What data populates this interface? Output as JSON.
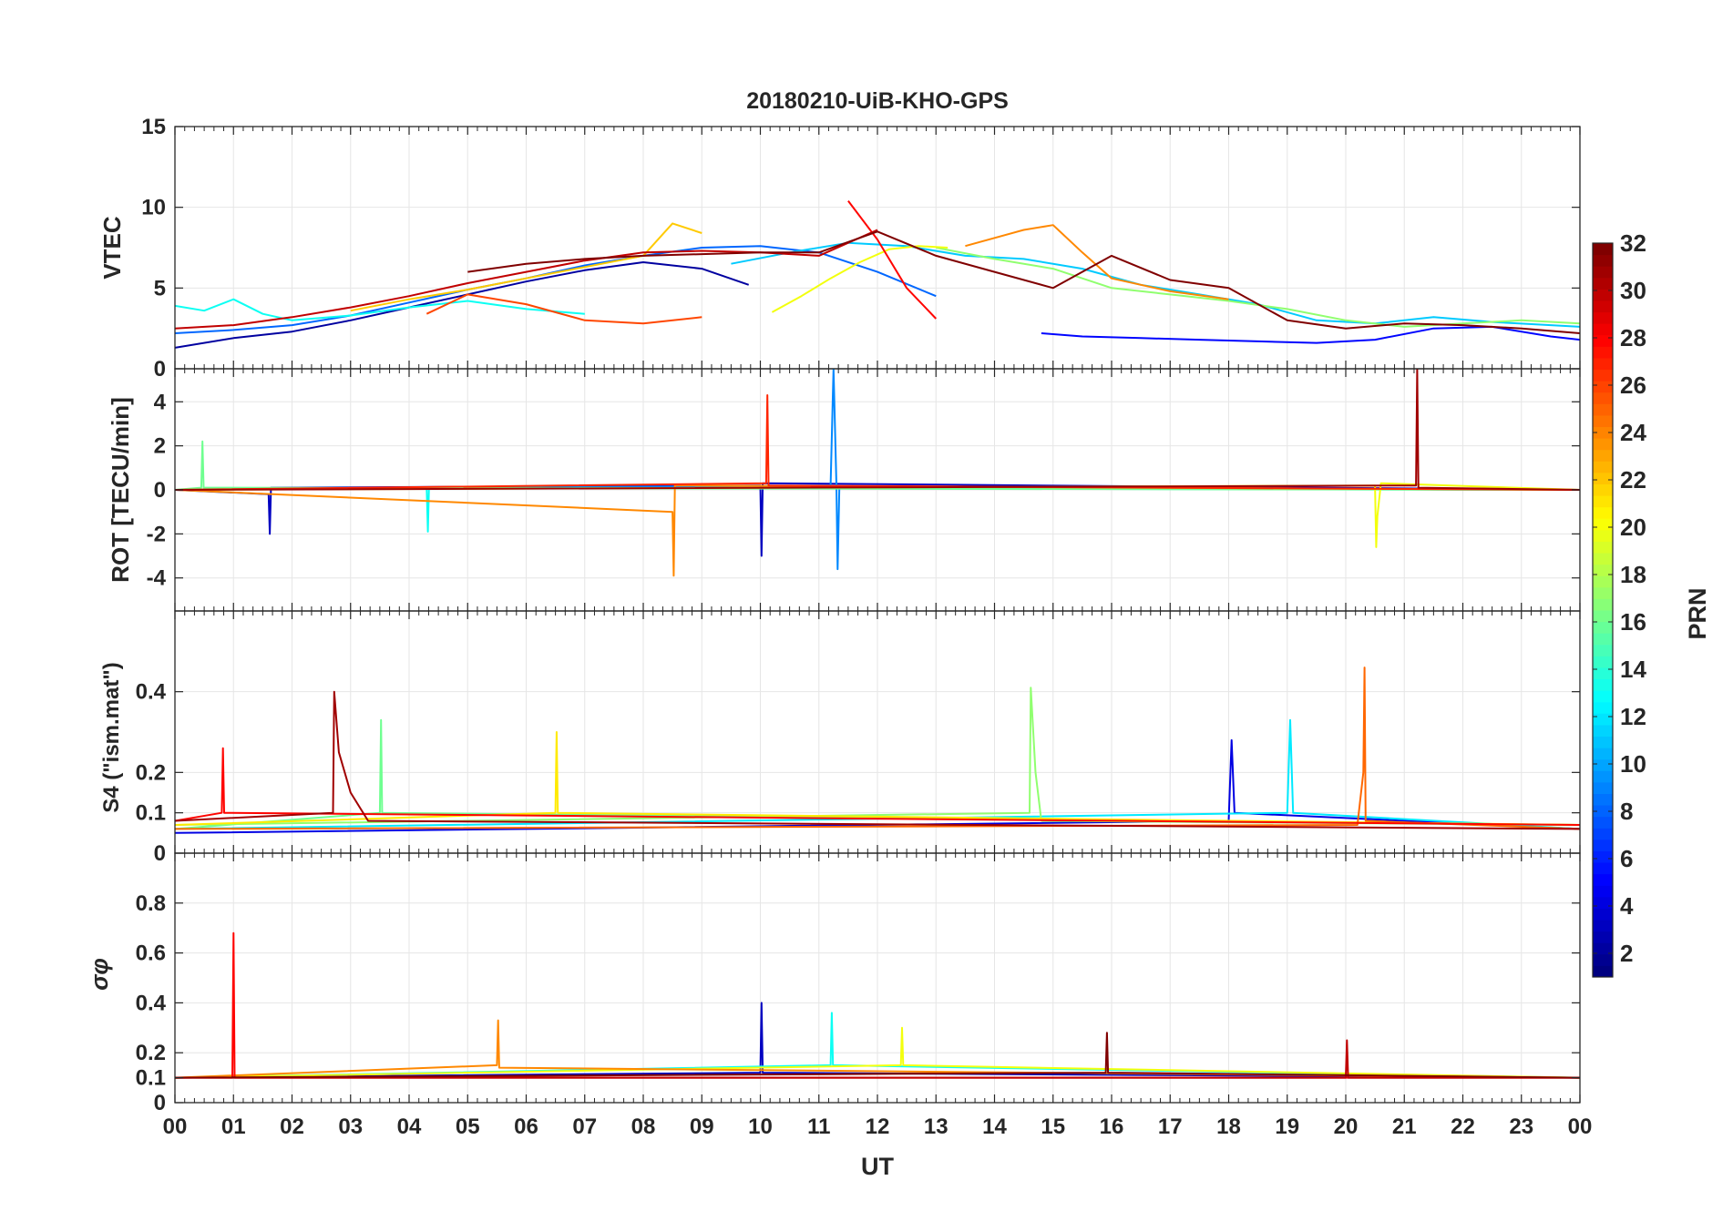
{
  "chart_data": {
    "type": "line",
    "title": "20180210-UiB-KHO-GPS",
    "xlabel": "UT",
    "x_ticks": [
      "00",
      "01",
      "02",
      "03",
      "04",
      "05",
      "06",
      "07",
      "08",
      "09",
      "10",
      "11",
      "12",
      "13",
      "14",
      "15",
      "16",
      "17",
      "18",
      "19",
      "20",
      "21",
      "22",
      "23",
      "00"
    ],
    "xlim": [
      0,
      24
    ],
    "grid": true,
    "panels": [
      {
        "id": "vtec",
        "ylabel": "VTEC",
        "ylim": [
          0,
          15
        ],
        "y_ticks": [
          0,
          5,
          10,
          15
        ],
        "series": [
          {
            "prn": 2,
            "x": [
              0,
              1,
              2,
              3,
              4,
              5,
              6,
              7,
              8,
              9,
              9.8
            ],
            "y": [
              1.3,
              1.9,
              2.3,
              3.0,
              3.8,
              4.6,
              5.4,
              6.1,
              6.6,
              6.2,
              5.2
            ]
          },
          {
            "prn": 5,
            "x": [
              14.8,
              15.5,
              16.5,
              17.5,
              18.5,
              19.5,
              20.5,
              21.5,
              22.5,
              23.5,
              24
            ],
            "y": [
              2.2,
              2.0,
              1.9,
              1.8,
              1.7,
              1.6,
              1.8,
              2.5,
              2.6,
              2.0,
              1.8
            ]
          },
          {
            "prn": 8,
            "x": [
              0,
              1,
              2,
              3,
              4,
              5,
              6,
              7,
              8,
              9,
              10,
              11,
              12,
              13
            ],
            "y": [
              2.2,
              2.4,
              2.7,
              3.3,
              4.1,
              4.9,
              5.6,
              6.4,
              7.0,
              7.5,
              7.6,
              7.2,
              6.0,
              4.5
            ]
          },
          {
            "prn": 11,
            "x": [
              9.5,
              10.5,
              11.5,
              12.5,
              13.5,
              14.5,
              15.5,
              16.5,
              17.5,
              18.5,
              19.5,
              20.5,
              21.5,
              22.5,
              23.5,
              24
            ],
            "y": [
              6.5,
              7.2,
              7.8,
              7.6,
              7.0,
              6.8,
              6.2,
              5.2,
              4.6,
              4.0,
              3.0,
              2.8,
              3.2,
              2.9,
              2.7,
              2.6
            ]
          },
          {
            "prn": 13,
            "x": [
              0,
              0.5,
              1,
              1.5,
              2,
              3,
              4,
              5,
              6,
              7
            ],
            "y": [
              3.9,
              3.6,
              4.3,
              3.4,
              3.0,
              3.3,
              3.8,
              4.2,
              3.7,
              3.4
            ]
          },
          {
            "prn": 17,
            "x": [
              13,
              14,
              15,
              16,
              17,
              18,
              19,
              20,
              21,
              22,
              23,
              24
            ],
            "y": [
              7.5,
              6.8,
              6.2,
              5.0,
              4.6,
              4.2,
              3.7,
              3.0,
              2.6,
              2.8,
              3.0,
              2.8
            ]
          },
          {
            "prn": 20,
            "x": [
              10.2,
              10.7,
              11.2,
              11.7,
              12.2,
              12.7,
              13.2
            ],
            "y": [
              3.5,
              4.5,
              5.6,
              6.6,
              7.4,
              7.6,
              7.5
            ]
          },
          {
            "prn": 22,
            "x": [
              3,
              4,
              5,
              6,
              7,
              8,
              8.5,
              9
            ],
            "y": [
              3.6,
              4.3,
              4.9,
              5.6,
              6.3,
              7.0,
              9.0,
              8.4
            ]
          },
          {
            "prn": 24,
            "x": [
              13.5,
              14.5,
              15,
              15.5,
              16,
              17,
              18
            ],
            "y": [
              7.6,
              8.6,
              8.9,
              7.2,
              5.6,
              4.8,
              4.3
            ]
          },
          {
            "prn": 26,
            "x": [
              4.3,
              5,
              6,
              7,
              8,
              9
            ],
            "y": [
              3.4,
              4.6,
              4.0,
              3.0,
              2.8,
              3.2
            ]
          },
          {
            "prn": 28,
            "x": [
              11.5,
              12,
              12.5,
              13
            ],
            "y": [
              10.4,
              8.0,
              5.0,
              3.1
            ]
          },
          {
            "prn": 30,
            "x": [
              0,
              1,
              2,
              3,
              4,
              5,
              6,
              7,
              8,
              9,
              10,
              11,
              12
            ],
            "y": [
              2.5,
              2.7,
              3.2,
              3.8,
              4.5,
              5.3,
              6.0,
              6.7,
              7.2,
              7.3,
              7.2,
              7.0,
              8.6
            ]
          },
          {
            "prn": 32,
            "x": [
              5,
              6,
              7,
              8,
              9,
              10,
              11,
              12,
              13,
              14,
              15,
              16,
              17,
              18,
              19,
              20,
              21,
              22,
              23,
              24
            ],
            "y": [
              6.0,
              6.5,
              6.8,
              7.0,
              7.1,
              7.2,
              7.2,
              8.5,
              7.0,
              6.0,
              5.0,
              7.0,
              5.5,
              5.0,
              3.0,
              2.5,
              2.8,
              2.7,
              2.5,
              2.2
            ]
          }
        ]
      },
      {
        "id": "rot",
        "ylabel": "ROT [TECU/min]",
        "ylim": [
          -5.5,
          5.5
        ],
        "y_ticks": [
          -4,
          -2,
          0,
          2,
          4
        ],
        "series": [
          {
            "prn": 3,
            "x": [
              0,
              1.6,
              1.62,
              1.64,
              10,
              10.02,
              10.04,
              24
            ],
            "y": [
              0,
              -0.2,
              -2.0,
              0.1,
              0.2,
              -3.0,
              0.3,
              0
            ]
          },
          {
            "prn": 9,
            "x": [
              0,
              11.2,
              11.25,
              11.3,
              11.32,
              11.35,
              24
            ],
            "y": [
              0,
              0.2,
              5.5,
              0.2,
              -3.6,
              0.1,
              0
            ]
          },
          {
            "prn": 13,
            "x": [
              0,
              4.3,
              4.32,
              4.34,
              24
            ],
            "y": [
              0,
              0.1,
              -1.9,
              0.1,
              0
            ]
          },
          {
            "prn": 16,
            "x": [
              0,
              0.45,
              0.47,
              0.49,
              24
            ],
            "y": [
              0,
              0.1,
              2.2,
              0.1,
              0
            ]
          },
          {
            "prn": 20,
            "x": [
              0,
              20.5,
              20.52,
              20.54,
              20.6,
              24
            ],
            "y": [
              0,
              0.2,
              -2.6,
              -1.2,
              0.3,
              0
            ]
          },
          {
            "prn": 24,
            "x": [
              0,
              8.5,
              8.52,
              8.54,
              24
            ],
            "y": [
              0,
              -1.0,
              -3.9,
              0.2,
              0
            ]
          },
          {
            "prn": 27,
            "x": [
              0,
              10.1,
              10.12,
              10.14,
              24
            ],
            "y": [
              0,
              0.3,
              4.3,
              0.2,
              0
            ]
          },
          {
            "prn": 31,
            "x": [
              0,
              21.2,
              21.22,
              21.24,
              24
            ],
            "y": [
              0,
              0.2,
              5.5,
              0.1,
              0
            ]
          }
        ]
      },
      {
        "id": "s4",
        "ylabel": "S4 (\"ism.mat\")",
        "ylim": [
          0,
          0.6
        ],
        "y_ticks": [
          0,
          0.1,
          0.2,
          0.4
        ],
        "series": [
          {
            "prn": 4,
            "x": [
              0,
              18.0,
              18.05,
              18.1,
              24
            ],
            "y": [
              0.05,
              0.08,
              0.28,
              0.1,
              0.06
            ]
          },
          {
            "prn": 12,
            "x": [
              0,
              19.0,
              19.05,
              19.1,
              24
            ],
            "y": [
              0.06,
              0.1,
              0.33,
              0.1,
              0.06
            ]
          },
          {
            "prn": 16,
            "x": [
              0,
              3.5,
              3.52,
              3.54,
              24
            ],
            "y": [
              0.06,
              0.1,
              0.33,
              0.1,
              0.07
            ]
          },
          {
            "prn": 17,
            "x": [
              0,
              14.6,
              14.62,
              14.7,
              14.8,
              24
            ],
            "y": [
              0.07,
              0.1,
              0.41,
              0.2,
              0.08,
              0.07
            ]
          },
          {
            "prn": 21,
            "x": [
              0,
              6.5,
              6.52,
              6.54,
              24
            ],
            "y": [
              0.07,
              0.1,
              0.3,
              0.1,
              0.07
            ]
          },
          {
            "prn": 25,
            "x": [
              0,
              20.2,
              20.3,
              20.32,
              20.34,
              24
            ],
            "y": [
              0.06,
              0.07,
              0.2,
              0.46,
              0.08,
              0.06
            ]
          },
          {
            "prn": 28,
            "x": [
              0,
              0.8,
              0.82,
              0.84,
              24
            ],
            "y": [
              0.08,
              0.1,
              0.26,
              0.1,
              0.07
            ]
          },
          {
            "prn": 31,
            "x": [
              0,
              2.7,
              2.72,
              2.8,
              3.0,
              3.3,
              24
            ],
            "y": [
              0.08,
              0.1,
              0.4,
              0.25,
              0.15,
              0.08,
              0.06
            ]
          }
        ]
      },
      {
        "id": "sigma",
        "ylabel": "σφ",
        "ylim": [
          0,
          1.0
        ],
        "y_ticks": [
          0,
          0.1,
          0.2,
          0.4,
          0.6,
          0.8
        ],
        "series": [
          {
            "prn": 3,
            "x": [
              0,
              10.0,
              10.02,
              10.04,
              24
            ],
            "y": [
              0.1,
              0.12,
              0.4,
              0.12,
              0.1
            ]
          },
          {
            "prn": 13,
            "x": [
              0,
              11.2,
              11.22,
              11.24,
              24
            ],
            "y": [
              0.1,
              0.15,
              0.36,
              0.15,
              0.1
            ]
          },
          {
            "prn": 20,
            "x": [
              0,
              12.4,
              12.42,
              12.44,
              24
            ],
            "y": [
              0.1,
              0.15,
              0.3,
              0.15,
              0.1
            ]
          },
          {
            "prn": 24,
            "x": [
              0,
              5.5,
              5.52,
              5.54,
              24
            ],
            "y": [
              0.1,
              0.15,
              0.33,
              0.14,
              0.1
            ]
          },
          {
            "prn": 28,
            "x": [
              0,
              0.98,
              1.0,
              1.02,
              24
            ],
            "y": [
              0.1,
              0.1,
              0.68,
              0.1,
              0.1
            ]
          },
          {
            "prn": 30,
            "x": [
              0,
              20.0,
              20.02,
              20.04,
              24
            ],
            "y": [
              0.1,
              0.1,
              0.25,
              0.1,
              0.1
            ]
          },
          {
            "prn": 32,
            "x": [
              0,
              15.9,
              15.92,
              15.94,
              24
            ],
            "y": [
              0.1,
              0.12,
              0.28,
              0.12,
              0.1
            ]
          }
        ]
      }
    ],
    "colorbar": {
      "label": "PRN",
      "range": [
        1,
        32
      ],
      "ticks": [
        2,
        4,
        6,
        8,
        10,
        12,
        14,
        16,
        18,
        20,
        22,
        24,
        26,
        28,
        30,
        32
      ],
      "colormap": "jet"
    }
  }
}
